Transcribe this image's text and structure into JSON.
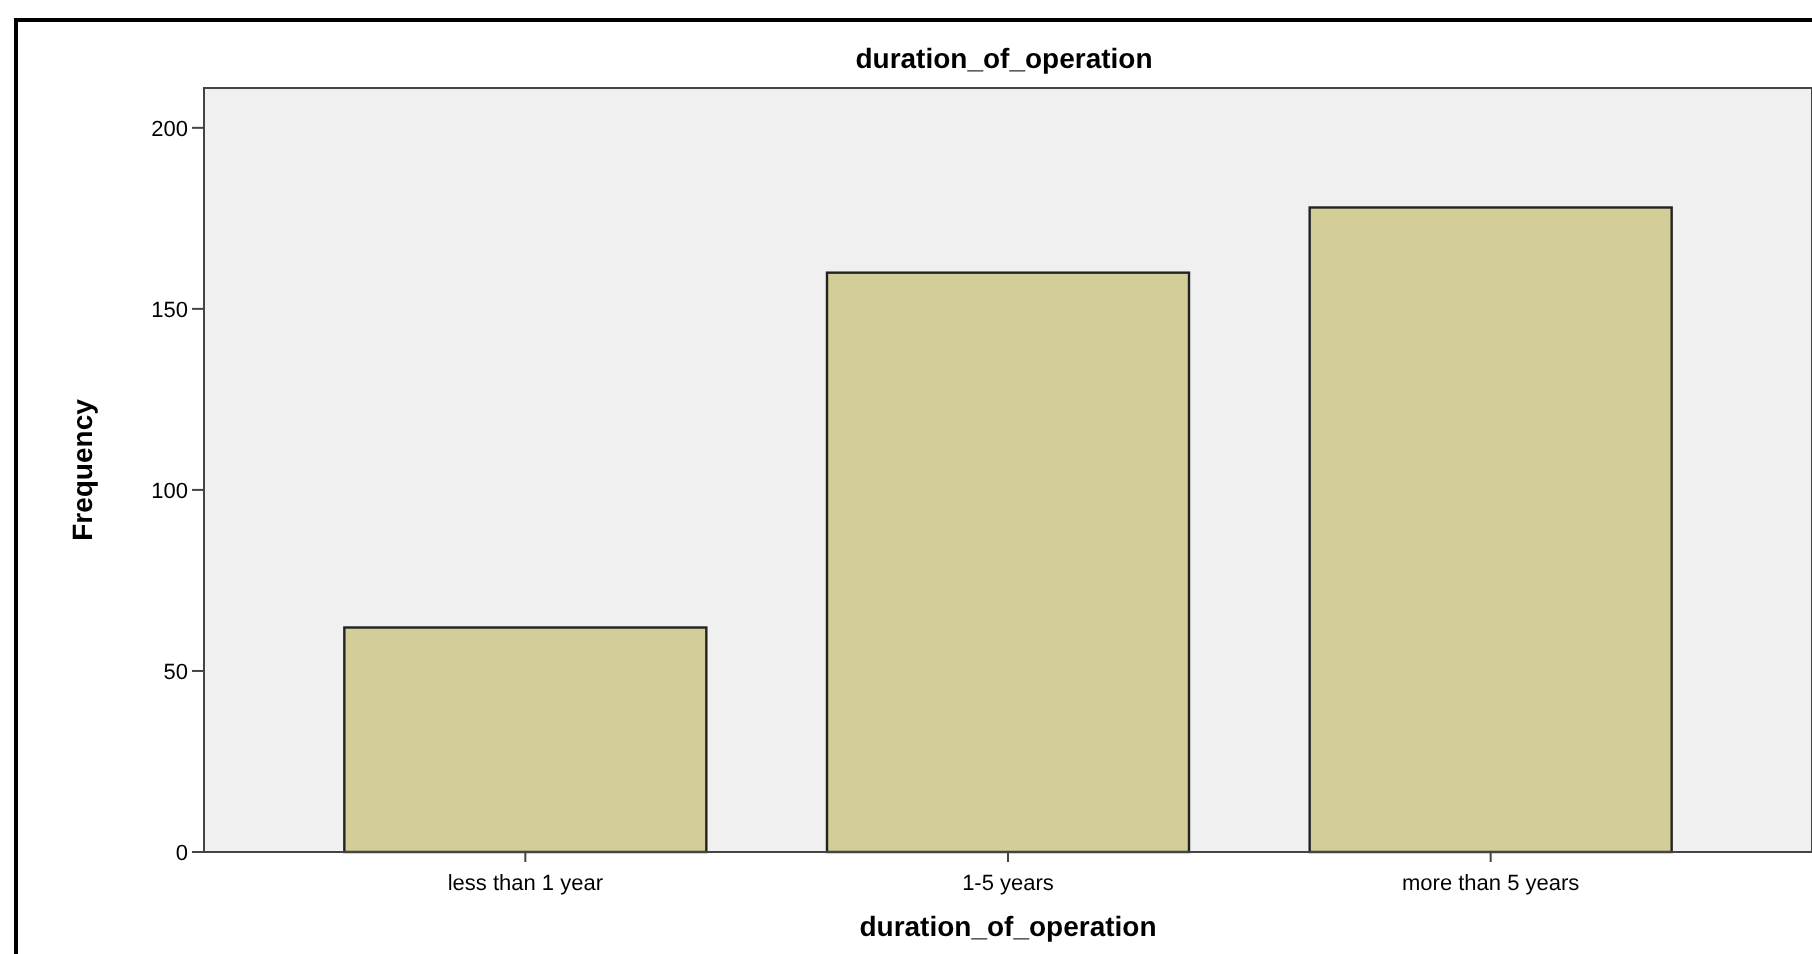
{
  "chart_data": {
    "type": "bar",
    "title": "duration_of_operation",
    "xlabel": "duration_of_operation",
    "ylabel": "Frequency",
    "categories": [
      "less than 1 year",
      "1-5 years",
      "more than 5 years"
    ],
    "values": [
      62,
      160,
      178
    ],
    "color": "#d3ce97",
    "ylim": [
      0,
      211
    ],
    "yticks": [
      0,
      50,
      100,
      150,
      200
    ],
    "grid": false
  }
}
